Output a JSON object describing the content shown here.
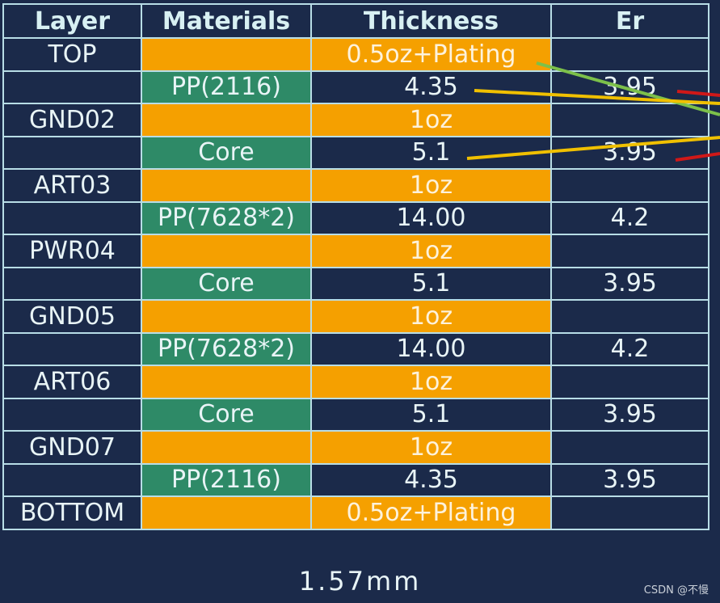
{
  "headers": {
    "layer": "Layer",
    "materials": "Materials",
    "thickness": "Thickness",
    "er": "Er"
  },
  "rows": [
    {
      "layer": "TOP",
      "material": "",
      "thickness": "0.5oz+Plating",
      "er": "",
      "kind": "copper"
    },
    {
      "layer": "",
      "material": "PP(2116)",
      "thickness": "4.35",
      "er": "3.95",
      "kind": "dielectric"
    },
    {
      "layer": "GND02",
      "material": "",
      "thickness": "1oz",
      "er": "",
      "kind": "copper"
    },
    {
      "layer": "",
      "material": "Core",
      "thickness": "5.1",
      "er": "3.95",
      "kind": "dielectric"
    },
    {
      "layer": "ART03",
      "material": "",
      "thickness": "1oz",
      "er": "",
      "kind": "copper"
    },
    {
      "layer": "",
      "material": "PP(7628*2)",
      "thickness": "14.00",
      "er": "4.2",
      "kind": "dielectric"
    },
    {
      "layer": "PWR04",
      "material": "",
      "thickness": "1oz",
      "er": "",
      "kind": "copper"
    },
    {
      "layer": "",
      "material": "Core",
      "thickness": "5.1",
      "er": "3.95",
      "kind": "dielectric"
    },
    {
      "layer": "GND05",
      "material": "",
      "thickness": "1oz",
      "er": "",
      "kind": "copper"
    },
    {
      "layer": "",
      "material": "PP(7628*2)",
      "thickness": "14.00",
      "er": "4.2",
      "kind": "dielectric"
    },
    {
      "layer": "ART06",
      "material": "",
      "thickness": "1oz",
      "er": "",
      "kind": "copper"
    },
    {
      "layer": "",
      "material": "Core",
      "thickness": "5.1",
      "er": "3.95",
      "kind": "dielectric"
    },
    {
      "layer": "GND07",
      "material": "",
      "thickness": "1oz",
      "er": "",
      "kind": "copper"
    },
    {
      "layer": "",
      "material": "PP(2116)",
      "thickness": "4.35",
      "er": "3.95",
      "kind": "dielectric"
    },
    {
      "layer": "BOTTOM",
      "material": "",
      "thickness": "0.5oz+Plating",
      "er": "",
      "kind": "copper"
    }
  ],
  "total_thickness": "1.57mm",
  "watermark": "CSDN @不慢",
  "colors": {
    "background": "#1b2a4a",
    "copper": "#f5a000",
    "dielectric": "#2e8a67",
    "border": "#b8dde6",
    "header_text": "#d8f0f3"
  }
}
